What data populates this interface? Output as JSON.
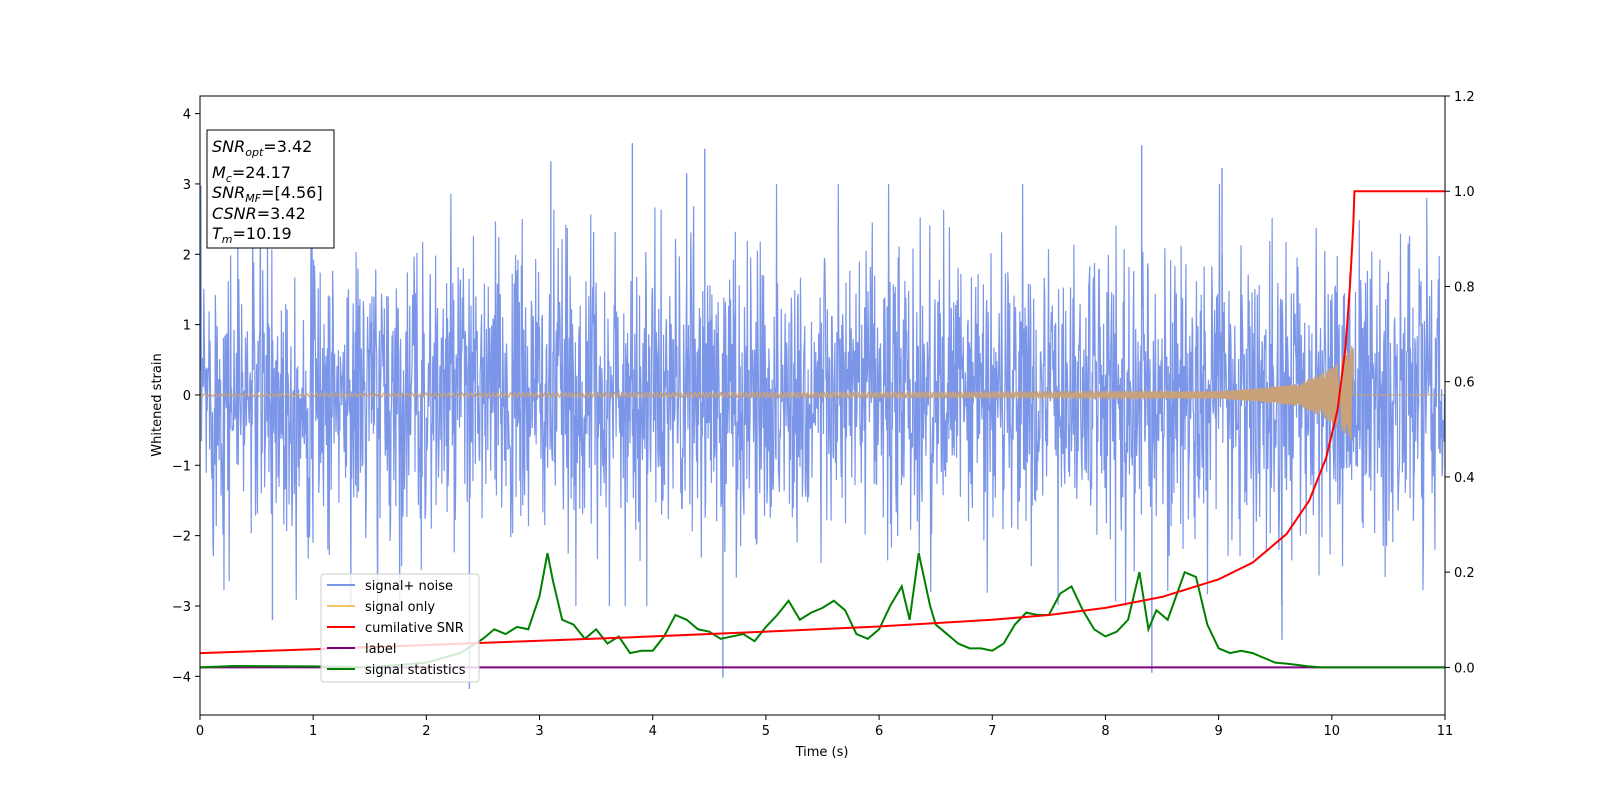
{
  "chart_data": {
    "type": "line",
    "xlabel": "Time (s)",
    "ylabel": "Whitened strain",
    "xlim": [
      0,
      11
    ],
    "ylim_left": [
      -4.55,
      4.25
    ],
    "ylim_right": [
      -0.1,
      1.2
    ],
    "xticks": [
      "0",
      "1",
      "2",
      "3",
      "4",
      "5",
      "6",
      "7",
      "8",
      "9",
      "10",
      "11"
    ],
    "yticks_left": [
      "4",
      "3",
      "2",
      "1",
      "0",
      "−1",
      "−2",
      "−3",
      "−4"
    ],
    "yticks_right": [
      "1.2",
      "1.0",
      "0.8",
      "0.6",
      "0.4",
      "0.2",
      "0.0"
    ],
    "colors": {
      "signal_noise": "#7b96e8",
      "signal_only": "#f2c36b",
      "signal_only_burst": "#c9a27a",
      "cumulative_snr": "#ff0000",
      "label": "#800080",
      "signal_statistics": "#008000"
    },
    "legend": {
      "placement": "lower-left",
      "entries": [
        "signal+ noise",
        "signal only",
        "cumilative SNR",
        "label",
        "signal statistics"
      ]
    },
    "annotation": {
      "snr_opt": {
        "base": "SNR",
        "sub": "opt",
        "value": "=3.42"
      },
      "mc": {
        "base": "M",
        "sub": "c",
        "value": "=24.17"
      },
      "snr_mf": {
        "base": "SNR",
        "sub": "MF",
        "value": "=[4.56]"
      },
      "csnr": {
        "base": "CSNR",
        "sub": "",
        "value": "=3.42"
      },
      "tm": {
        "base": "T",
        "sub": "m",
        "value": "=10.19"
      }
    },
    "series": [
      {
        "name": "signal+ noise",
        "axis": "left",
        "note_style": "dense noise",
        "x_range": [
          0,
          11
        ],
        "envelope": [
          -2.5,
          2.5
        ],
        "peaks": [
          {
            "x": 3.82,
            "y": 3.58
          },
          {
            "x": 8.32,
            "y": 3.55
          },
          {
            "x": 4.46,
            "y": 3.5
          },
          {
            "x": 4.3,
            "y": 3.15
          },
          {
            "x": 3.1,
            "y": 3.32
          },
          {
            "x": 9.03,
            "y": 3.23
          },
          {
            "x": 4.62,
            "y": -4.02
          },
          {
            "x": 2.38,
            "y": -4.18
          },
          {
            "x": 8.41,
            "y": -3.95
          },
          {
            "x": 0.64,
            "y": -3.2
          },
          {
            "x": 9.56,
            "y": -3.48
          }
        ]
      },
      {
        "name": "signal only",
        "axis": "left",
        "x": [
          0,
          9.0,
          9.4,
          9.7,
          9.9,
          10.05,
          10.15,
          10.19,
          10.2,
          11
        ],
        "amplitude": [
          0.02,
          0.05,
          0.1,
          0.16,
          0.3,
          0.45,
          0.62,
          0.75,
          0.0,
          0.0
        ]
      },
      {
        "name": "cumilative SNR",
        "axis": "right",
        "x": [
          0,
          1,
          2,
          3,
          4,
          5,
          6,
          7,
          7.5,
          8,
          8.5,
          9,
          9.3,
          9.6,
          9.8,
          9.95,
          10.05,
          10.12,
          10.16,
          10.19,
          10.2,
          11
        ],
        "y": [
          0.03,
          0.038,
          0.047,
          0.056,
          0.065,
          0.075,
          0.086,
          0.1,
          0.11,
          0.125,
          0.148,
          0.185,
          0.22,
          0.28,
          0.35,
          0.44,
          0.54,
          0.67,
          0.8,
          0.93,
          1.0,
          1.0
        ]
      },
      {
        "name": "label",
        "axis": "right",
        "x": [
          0,
          11
        ],
        "y": [
          0,
          0
        ]
      },
      {
        "name": "signal statistics",
        "axis": "right",
        "x": [
          0,
          0.3,
          1.0,
          1.5,
          2.0,
          2.3,
          2.5,
          2.6,
          2.7,
          2.8,
          2.9,
          3.0,
          3.07,
          3.12,
          3.2,
          3.3,
          3.4,
          3.5,
          3.6,
          3.7,
          3.8,
          3.9,
          4.0,
          4.1,
          4.2,
          4.3,
          4.4,
          4.5,
          4.6,
          4.7,
          4.8,
          4.9,
          5.0,
          5.1,
          5.2,
          5.3,
          5.4,
          5.5,
          5.6,
          5.7,
          5.8,
          5.9,
          6.0,
          6.1,
          6.2,
          6.27,
          6.35,
          6.45,
          6.5,
          6.6,
          6.7,
          6.8,
          6.9,
          7.0,
          7.1,
          7.2,
          7.3,
          7.4,
          7.5,
          7.6,
          7.7,
          7.8,
          7.9,
          8.0,
          8.1,
          8.2,
          8.3,
          8.38,
          8.45,
          8.55,
          8.7,
          8.8,
          8.9,
          9.0,
          9.1,
          9.2,
          9.3,
          9.4,
          9.5,
          9.6,
          9.7,
          9.8,
          9.9,
          10.0,
          10.5,
          11.0
        ],
        "y": [
          0.0,
          0.003,
          0.002,
          0.0,
          0.01,
          0.03,
          0.06,
          0.08,
          0.07,
          0.085,
          0.08,
          0.15,
          0.24,
          0.18,
          0.1,
          0.09,
          0.06,
          0.08,
          0.05,
          0.065,
          0.03,
          0.035,
          0.035,
          0.065,
          0.11,
          0.1,
          0.08,
          0.075,
          0.06,
          0.065,
          0.07,
          0.055,
          0.085,
          0.11,
          0.14,
          0.1,
          0.115,
          0.125,
          0.14,
          0.12,
          0.07,
          0.06,
          0.08,
          0.13,
          0.17,
          0.1,
          0.24,
          0.13,
          0.09,
          0.07,
          0.05,
          0.04,
          0.04,
          0.035,
          0.05,
          0.09,
          0.115,
          0.11,
          0.11,
          0.155,
          0.17,
          0.12,
          0.08,
          0.065,
          0.075,
          0.1,
          0.2,
          0.08,
          0.12,
          0.1,
          0.2,
          0.19,
          0.09,
          0.04,
          0.03,
          0.035,
          0.03,
          0.02,
          0.01,
          0.008,
          0.005,
          0.002,
          0.0,
          0.0,
          0.0,
          0.0
        ]
      }
    ]
  }
}
